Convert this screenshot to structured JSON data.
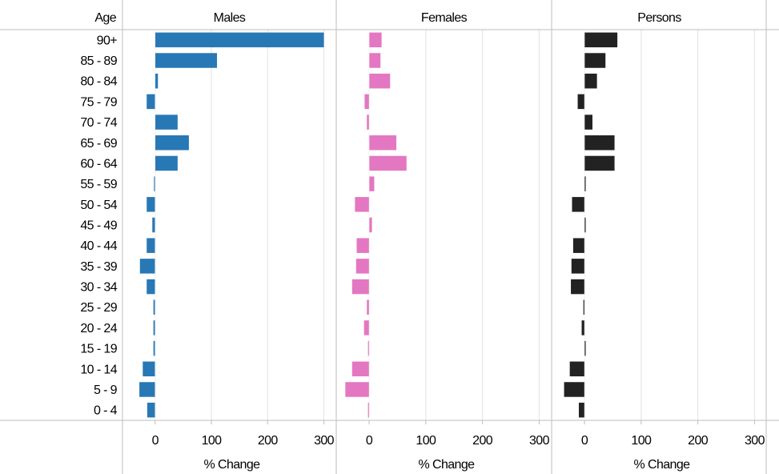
{
  "chart_data": {
    "type": "bar",
    "orientation": "horizontal",
    "row_header": "Age",
    "categories": [
      "90+",
      "85 - 89",
      "80 - 84",
      "75 - 79",
      "70 - 74",
      "65 - 69",
      "60 - 64",
      "55 - 59",
      "50 - 54",
      "45 - 49",
      "40 - 44",
      "35 - 39",
      "30 - 34",
      "25 - 29",
      "20 - 24",
      "15 - 19",
      "10 - 14",
      "5 - 9",
      "0 - 4"
    ],
    "panels": [
      {
        "name": "Males",
        "color": "#2878b5",
        "values": [
          300,
          110,
          5,
          -15,
          40,
          60,
          40,
          -2,
          -15,
          -5,
          -15,
          -27,
          -15,
          -3,
          -3,
          -3,
          -22,
          -28,
          -14
        ],
        "xlabel": "% Change",
        "xticks": [
          "0",
          "100",
          "200",
          "300"
        ],
        "xlim": [
          -58,
          322
        ]
      },
      {
        "name": "Females",
        "color": "#e377c2",
        "values": [
          22,
          20,
          37,
          -8,
          -4,
          48,
          66,
          9,
          -25,
          5,
          -22,
          -23,
          -30,
          -4,
          -9,
          -2,
          -30,
          -42,
          -2
        ],
        "xlabel": "% Change",
        "xticks": [
          "0",
          "100",
          "200",
          "300"
        ],
        "xlim": [
          -58,
          322
        ]
      },
      {
        "name": "Persons",
        "color": "#222222",
        "values": [
          58,
          37,
          22,
          -12,
          14,
          53,
          53,
          2,
          -22,
          2,
          -20,
          -23,
          -24,
          -2,
          -5,
          2,
          -26,
          -36,
          -10
        ],
        "xlabel": "% Change",
        "xticks": [
          "0",
          "100",
          "200",
          "300"
        ],
        "xlim": [
          -58,
          322
        ]
      }
    ],
    "grid": true
  }
}
